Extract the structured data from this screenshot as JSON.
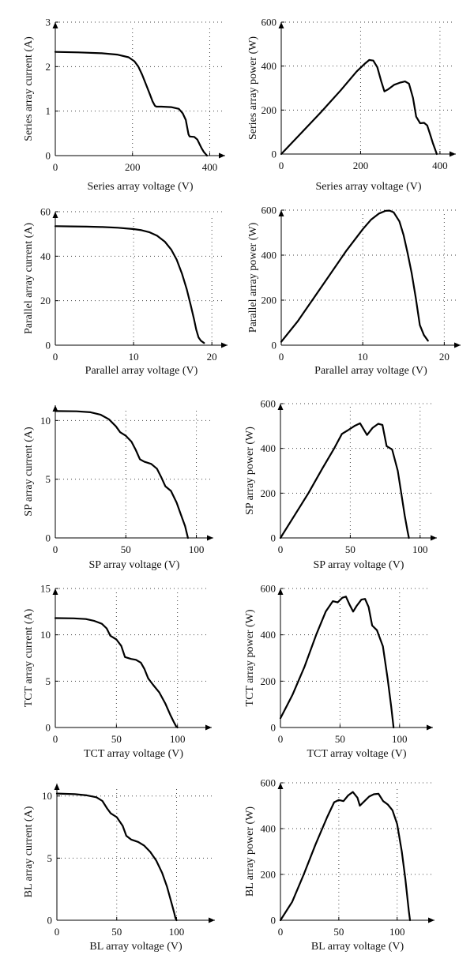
{
  "chart_data": [
    {
      "type": "line",
      "xlabel": "Series array voltage (V)",
      "ylabel": "Series array current (A)",
      "xticks": [
        "0",
        "200",
        "400"
      ],
      "xtick_values": [
        0,
        200,
        400
      ],
      "yticks": [
        "0",
        "1",
        "2",
        "3"
      ],
      "ytick_values": [
        0,
        1,
        2,
        3
      ],
      "xlim": [
        0,
        440
      ],
      "ylim": [
        0,
        3
      ],
      "grid": true,
      "series": [
        {
          "x": [
            0,
            60,
            120,
            160,
            190,
            205,
            215,
            225,
            235,
            245,
            252,
            258,
            262,
            275,
            300,
            320,
            330,
            338,
            342,
            345,
            348,
            360,
            368,
            374,
            380,
            385,
            390,
            393
          ],
          "y": [
            2.33,
            2.32,
            2.3,
            2.27,
            2.21,
            2.12,
            2.0,
            1.82,
            1.6,
            1.38,
            1.22,
            1.12,
            1.1,
            1.1,
            1.09,
            1.05,
            0.95,
            0.8,
            0.62,
            0.48,
            0.43,
            0.42,
            0.36,
            0.25,
            0.15,
            0.08,
            0.03,
            0
          ]
        }
      ]
    },
    {
      "type": "line",
      "xlabel": "Series array voltage (V)",
      "ylabel": "Series array power (W)",
      "xticks": [
        "0",
        "200",
        "400"
      ],
      "xtick_values": [
        0,
        200,
        400
      ],
      "yticks": [
        "0",
        "200",
        "400",
        "600"
      ],
      "ytick_values": [
        0,
        200,
        400,
        600
      ],
      "xlim": [
        0,
        440
      ],
      "ylim": [
        0,
        600
      ],
      "grid": true,
      "series": [
        {
          "x": [
            0,
            50,
            100,
            150,
            190,
            210,
            222,
            232,
            242,
            252,
            260,
            270,
            285,
            300,
            312,
            322,
            332,
            340,
            350,
            360,
            368,
            375,
            382,
            388,
            392
          ],
          "y": [
            0,
            95,
            190,
            290,
            375,
            410,
            428,
            425,
            395,
            330,
            285,
            295,
            315,
            325,
            330,
            320,
            255,
            170,
            140,
            142,
            130,
            90,
            50,
            20,
            0
          ]
        }
      ]
    },
    {
      "type": "line",
      "xlabel": "Parallel array voltage (V)",
      "ylabel": "Parallel array current (A)",
      "xticks": [
        "0",
        "10",
        "20"
      ],
      "xtick_values": [
        0,
        10,
        20
      ],
      "yticks": [
        "0",
        "20",
        "40",
        "60"
      ],
      "ytick_values": [
        0,
        20,
        40,
        60
      ],
      "xlim": [
        0,
        22
      ],
      "ylim": [
        0,
        60
      ],
      "grid": true,
      "series": [
        {
          "x": [
            0,
            2,
            4,
            6,
            8,
            10,
            11,
            12,
            13,
            14,
            14.8,
            15.5,
            16.2,
            16.8,
            17.3,
            17.7,
            18.0,
            18.3,
            18.6,
            19.0
          ],
          "y": [
            53.5,
            53.4,
            53.3,
            53.1,
            52.8,
            52.2,
            51.7,
            50.8,
            49.2,
            46.5,
            43,
            38.5,
            32,
            25,
            18,
            12,
            7,
            3.5,
            2,
            1
          ]
        }
      ]
    },
    {
      "type": "line",
      "xlabel": "Parallel array voltage (V)",
      "ylabel": "Parallel array power (W)",
      "xticks": [
        "0",
        "10",
        "20"
      ],
      "xtick_values": [
        0,
        10,
        20
      ],
      "yticks": [
        "0",
        "200",
        "400",
        "600"
      ],
      "ytick_values": [
        0,
        200,
        400,
        600
      ],
      "xlim": [
        0,
        22
      ],
      "ylim": [
        0,
        600
      ],
      "grid": true,
      "series": [
        {
          "x": [
            0,
            2,
            4,
            6,
            8,
            10,
            11,
            12,
            12.8,
            13.3,
            13.8,
            14.5,
            15.0,
            15.5,
            16.0,
            16.5,
            17.0,
            17.5,
            18.0
          ],
          "y": [
            15,
            105,
            210,
            315,
            420,
            515,
            557,
            585,
            597,
            598,
            590,
            550,
            490,
            410,
            320,
            210,
            90,
            45,
            20
          ]
        }
      ]
    },
    {
      "type": "line",
      "xlabel": "SP array voltage (V)",
      "ylabel": "SP array current (A)",
      "xticks": [
        "0",
        "50",
        "100"
      ],
      "xtick_values": [
        0,
        50,
        100
      ],
      "yticks": [
        "0",
        "5",
        "10"
      ],
      "ytick_values": [
        0,
        5,
        10
      ],
      "xlim": [
        0,
        112
      ],
      "ylim": [
        0,
        11.3
      ],
      "grid": true,
      "series": [
        {
          "x": [
            0,
            15,
            25,
            32,
            38,
            43,
            46,
            50,
            54,
            57,
            60,
            63,
            68,
            72,
            75,
            78,
            82,
            86,
            89,
            92,
            94
          ],
          "y": [
            10.8,
            10.78,
            10.7,
            10.5,
            10.1,
            9.5,
            9.0,
            8.7,
            8.2,
            7.5,
            6.7,
            6.5,
            6.3,
            5.9,
            5.2,
            4.4,
            4.0,
            3.0,
            2.0,
            1.0,
            0
          ]
        }
      ]
    },
    {
      "type": "line",
      "xlabel": "SP array voltage (V)",
      "ylabel": "SP array power (W)",
      "xticks": [
        "0",
        "50",
        "100"
      ],
      "xtick_values": [
        0,
        50,
        100
      ],
      "yticks": [
        "0",
        "200",
        "400",
        "600"
      ],
      "ytick_values": [
        0,
        200,
        400,
        600
      ],
      "xlim": [
        0,
        112
      ],
      "ylim": [
        0,
        600
      ],
      "grid": true,
      "series": [
        {
          "x": [
            0,
            10,
            20,
            30,
            38,
            44,
            48,
            53,
            57,
            62,
            66,
            70,
            73,
            76,
            80,
            84,
            87,
            89,
            91,
            92
          ],
          "y": [
            0,
            100,
            200,
            310,
            395,
            465,
            480,
            500,
            512,
            460,
            492,
            510,
            505,
            410,
            395,
            300,
            180,
            100,
            30,
            0
          ]
        }
      ]
    },
    {
      "type": "line",
      "xlabel": "TCT array voltage (V)",
      "ylabel": "TCT array current (A)",
      "xticks": [
        "0",
        "50",
        "100"
      ],
      "xtick_values": [
        0,
        50,
        100
      ],
      "yticks": [
        "0",
        "5",
        "10",
        "15"
      ],
      "ytick_values": [
        0,
        5,
        10,
        15
      ],
      "xlim": [
        0,
        128
      ],
      "ylim": [
        0,
        15
      ],
      "grid": true,
      "series": [
        {
          "x": [
            0,
            15,
            25,
            32,
            38,
            42,
            45,
            50,
            54,
            57,
            62,
            66,
            70,
            73,
            76,
            80,
            85,
            90,
            94,
            97,
            99,
            100
          ],
          "y": [
            11.8,
            11.78,
            11.7,
            11.5,
            11.2,
            10.7,
            9.9,
            9.5,
            8.8,
            7.6,
            7.4,
            7.3,
            7.0,
            6.3,
            5.3,
            4.6,
            3.8,
            2.6,
            1.4,
            0.6,
            0.1,
            0
          ]
        }
      ]
    },
    {
      "type": "line",
      "xlabel": "TCT array voltage (V)",
      "ylabel": "TCT array power (W)",
      "xticks": [
        "0",
        "50",
        "100"
      ],
      "xtick_values": [
        0,
        50,
        100
      ],
      "yticks": [
        "0",
        "200",
        "400",
        "600"
      ],
      "ytick_values": [
        0,
        200,
        400,
        600
      ],
      "xlim": [
        0,
        128
      ],
      "ylim": [
        0,
        600
      ],
      "grid": true,
      "series": [
        {
          "x": [
            0,
            10,
            20,
            30,
            38,
            44,
            48,
            52,
            55,
            58,
            61,
            64,
            68,
            71,
            74,
            77,
            81,
            86,
            90,
            93,
            95
          ],
          "y": [
            40,
            140,
            260,
            400,
            500,
            545,
            540,
            560,
            565,
            530,
            500,
            525,
            552,
            555,
            520,
            440,
            420,
            350,
            210,
            90,
            0
          ]
        }
      ]
    },
    {
      "type": "line",
      "xlabel": "BL array voltage (V)",
      "ylabel": "BL array current (A)",
      "xticks": [
        "0",
        "50",
        "100"
      ],
      "xtick_values": [
        0,
        50,
        100
      ],
      "yticks": [
        "0",
        "5",
        "10"
      ],
      "ytick_values": [
        0,
        5,
        10
      ],
      "xlim": [
        0,
        132
      ],
      "ylim": [
        0,
        11
      ],
      "grid": true,
      "series": [
        {
          "x": [
            0,
            15,
            25,
            33,
            38,
            42,
            45,
            50,
            55,
            58,
            62,
            68,
            73,
            78,
            83,
            88,
            92,
            96,
            98,
            99,
            100
          ],
          "y": [
            10.2,
            10.15,
            10.05,
            9.9,
            9.6,
            9.0,
            8.6,
            8.3,
            7.6,
            6.8,
            6.5,
            6.3,
            6.0,
            5.5,
            4.8,
            3.8,
            2.7,
            1.3,
            0.6,
            0.2,
            0
          ]
        }
      ]
    },
    {
      "type": "line",
      "xlabel": "BL array voltage (V)",
      "ylabel": "BL array power (W)",
      "xticks": [
        "0",
        "50",
        "100"
      ],
      "xtick_values": [
        0,
        50,
        100
      ],
      "yticks": [
        "0",
        "200",
        "400",
        "600"
      ],
      "ytick_values": [
        0,
        200,
        400,
        600
      ],
      "xlim": [
        0,
        132
      ],
      "ylim": [
        0,
        600
      ],
      "grid": true,
      "series": [
        {
          "x": [
            0,
            10,
            20,
            30,
            40,
            46,
            50,
            54,
            58,
            62,
            66,
            68,
            72,
            76,
            80,
            84,
            88,
            92,
            96,
            100,
            104,
            107,
            110,
            111
          ],
          "y": [
            0,
            80,
            200,
            330,
            450,
            515,
            525,
            520,
            545,
            560,
            535,
            500,
            520,
            540,
            550,
            552,
            520,
            505,
            480,
            420,
            300,
            180,
            40,
            0
          ]
        }
      ]
    }
  ]
}
